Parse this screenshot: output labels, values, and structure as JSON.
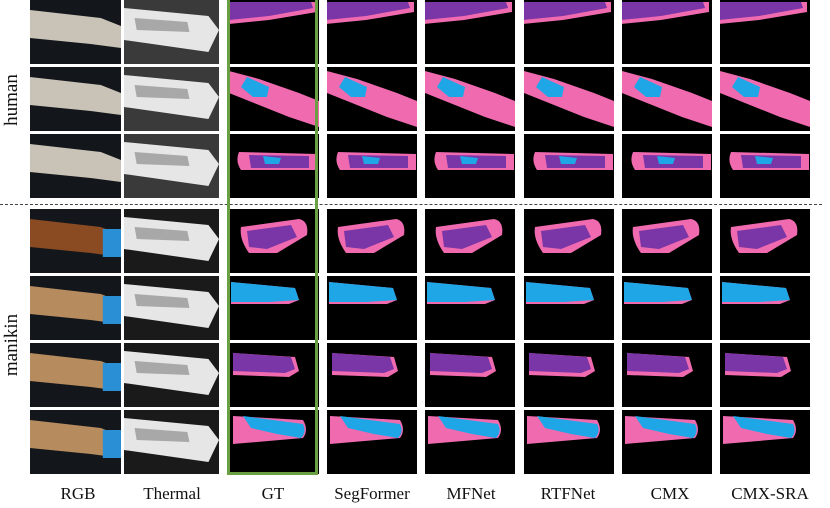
{
  "columns": [
    "RGB",
    "Thermal",
    "GT",
    "SegFormer",
    "MFNet",
    "RTFNet",
    "CMX",
    "CMX-SRA"
  ],
  "groups": [
    {
      "label": "human",
      "rows": 3
    },
    {
      "label": "manikin",
      "rows": 4
    }
  ],
  "colors": {
    "class_pink": "#f06ab0",
    "class_purple": "#7a35a6",
    "class_blue": "#1ea6e6",
    "gt_highlight": "#6a9f44",
    "background": "#000000"
  }
}
